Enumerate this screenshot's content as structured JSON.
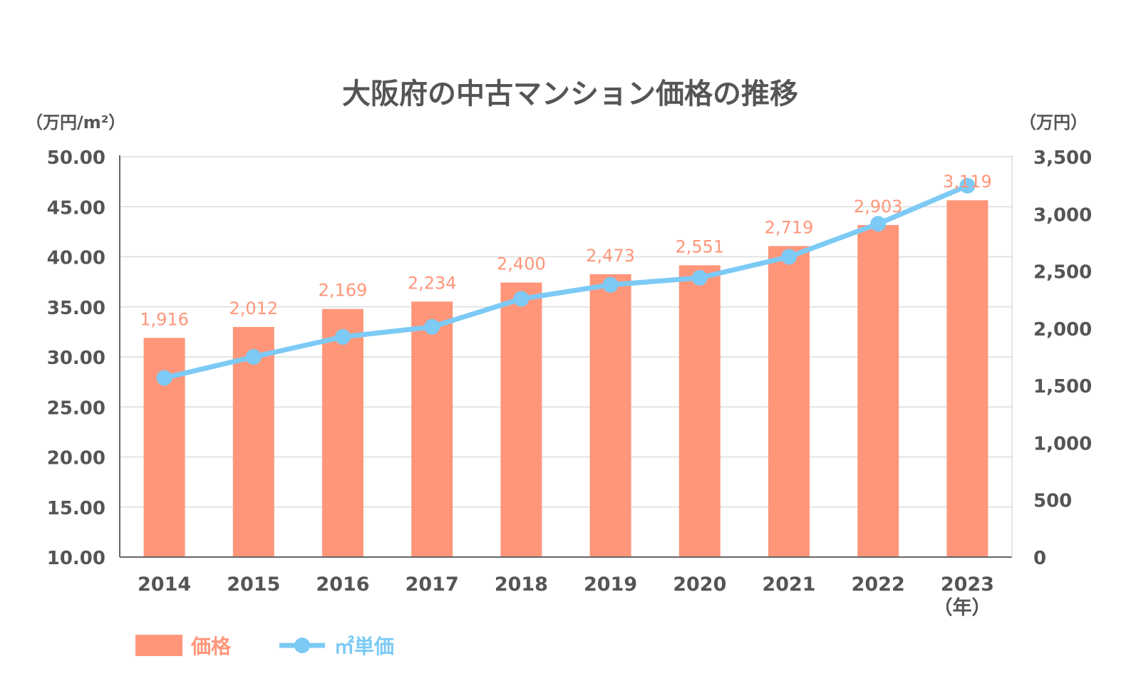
{
  "title": "大阪府の中古マンション価格の推移",
  "colors": {
    "bar": "#ff967a",
    "line": "#7ccaf5",
    "text": "#555555",
    "grid": "#dcdcdc",
    "axis": "#666666"
  },
  "chart_data": {
    "type": "bar",
    "title": "大阪府の中古マンション価格の推移",
    "categories": [
      "2014",
      "2015",
      "2016",
      "2017",
      "2018",
      "2019",
      "2020",
      "2021",
      "2022",
      "2023"
    ],
    "xlabel": "（年）",
    "y_left": {
      "unit_label": "（万円/m²）",
      "range": [
        10,
        50
      ],
      "ticks": [
        "50.00",
        "45.00",
        "40.00",
        "35.00",
        "30.00",
        "25.00",
        "20.00",
        "15.00",
        "10.00"
      ],
      "tick_values": [
        50,
        45,
        40,
        35,
        30,
        25,
        20,
        15,
        10
      ]
    },
    "y_right": {
      "unit_label": "（万円）",
      "range": [
        0,
        3500
      ],
      "ticks": [
        "3,500",
        "3,000",
        "2,500",
        "2,000",
        "1,500",
        "1,000",
        "500",
        "0"
      ],
      "tick_values": [
        3500,
        3000,
        2500,
        2000,
        1500,
        1000,
        500,
        0
      ]
    },
    "grid": true,
    "legend_position": "bottom-left",
    "series": [
      {
        "name": "価格",
        "type": "bar",
        "axis": "right",
        "values": [
          1916,
          2012,
          2169,
          2234,
          2400,
          2473,
          2551,
          2719,
          2903,
          3119
        ],
        "labels": [
          "1,916",
          "2,012",
          "2,169",
          "2,234",
          "2,400",
          "2,473",
          "2,551",
          "2,719",
          "2,903",
          "3,119"
        ]
      },
      {
        "name": "㎡単価",
        "type": "line",
        "axis": "left",
        "values": [
          27.9,
          30.0,
          32.0,
          33.0,
          35.8,
          37.2,
          37.9,
          40.0,
          43.3,
          47.1
        ]
      }
    ]
  }
}
